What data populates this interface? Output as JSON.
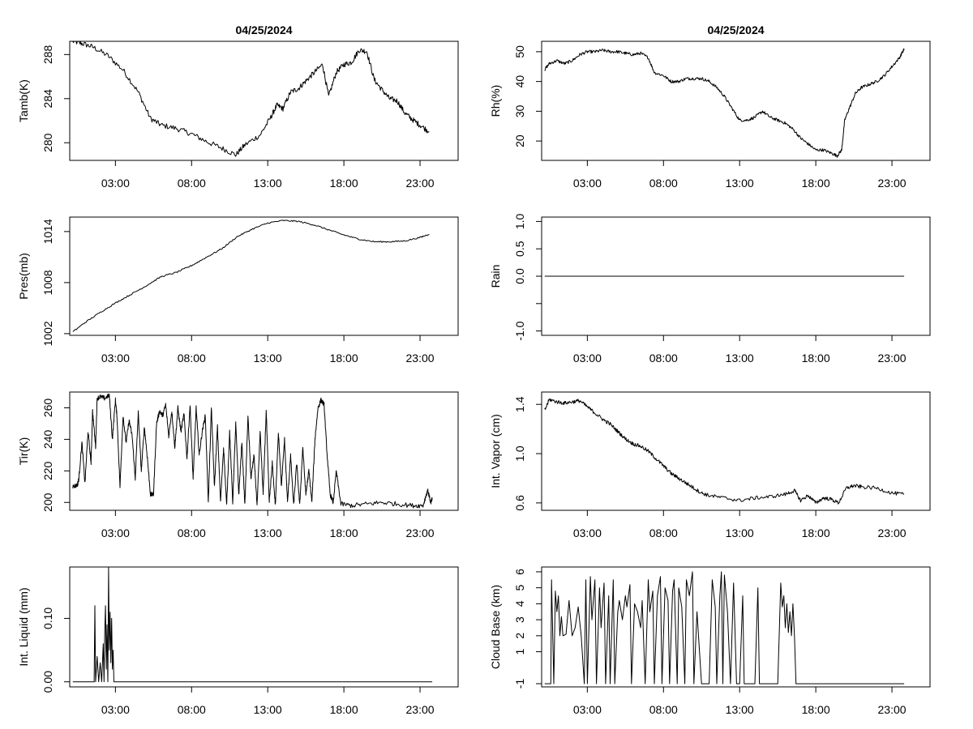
{
  "date_titles": [
    "04/25/2024",
    "04/25/2024"
  ],
  "x_tick_labels": [
    "03:00",
    "08:00",
    "13:00",
    "18:00",
    "23:00"
  ],
  "chart_data": [
    {
      "type": "line",
      "panel": "tamb",
      "title": "04/25/2024",
      "xlabel": "",
      "ylabel": "Tamb(K)",
      "xlim": [
        0,
        25.5
      ],
      "ylim": [
        278.4,
        289.2
      ],
      "xticks": [
        3,
        8,
        13,
        18,
        23
      ],
      "yticks": [
        280,
        284,
        288
      ],
      "yticklabels": [
        "280",
        "284",
        "288"
      ],
      "x": [
        0.2,
        0.8,
        1.5,
        2.5,
        3.5,
        4.5,
        5.3,
        6.0,
        7.0,
        8.0,
        9.0,
        10.0,
        10.9,
        11.5,
        12.5,
        13.2,
        13.6,
        14.0,
        14.5,
        15.0,
        15.5,
        16.0,
        16.6,
        17.0,
        17.5,
        18.0,
        18.5,
        19.0,
        19.5,
        20.0,
        20.5,
        21.0,
        21.5,
        22.0,
        22.5,
        23.0,
        23.6
      ],
      "y": [
        289.2,
        289.0,
        288.7,
        287.9,
        286.6,
        284.6,
        282.2,
        281.6,
        281.3,
        280.8,
        280.1,
        279.5,
        278.9,
        279.8,
        280.7,
        282.3,
        283.4,
        283.1,
        284.6,
        284.9,
        285.6,
        286.3,
        287.1,
        284.2,
        286.4,
        287.1,
        287.3,
        288.4,
        288.3,
        285.7,
        284.8,
        284.0,
        283.8,
        282.7,
        282.1,
        281.6,
        281.0
      ],
      "noise": 0.25
    },
    {
      "type": "line",
      "panel": "rh",
      "title": "04/25/2024",
      "xlabel": "",
      "ylabel": "Rh(%)",
      "xlim": [
        0,
        25.5
      ],
      "ylim": [
        13.5,
        53.5
      ],
      "xticks": [
        3,
        8,
        13,
        18,
        23
      ],
      "yticks": [
        20,
        30,
        40,
        50
      ],
      "yticklabels": [
        "20",
        "30",
        "40",
        "50"
      ],
      "x": [
        0.2,
        0.5,
        1.0,
        1.5,
        2.0,
        2.5,
        3.0,
        3.5,
        4.0,
        4.5,
        5.0,
        5.5,
        6.0,
        6.5,
        7.0,
        7.4,
        8.0,
        8.5,
        9.0,
        9.5,
        10.0,
        10.5,
        11.0,
        11.5,
        12.0,
        12.5,
        13.0,
        13.5,
        14.0,
        14.5,
        15.0,
        15.5,
        16.0,
        16.5,
        17.0,
        17.5,
        18.0,
        18.5,
        19.0,
        19.4,
        19.7,
        19.9,
        20.2,
        20.6,
        21.0,
        21.5,
        22.0,
        22.5,
        23.0,
        23.5,
        23.8
      ],
      "y": [
        44,
        46,
        47,
        46,
        47,
        49,
        50,
        50,
        50.5,
        50,
        50,
        49.5,
        49,
        49.5,
        48,
        43,
        42,
        40,
        40,
        41,
        41,
        41,
        40,
        38,
        35,
        31,
        27,
        27,
        28,
        30,
        28,
        27,
        26,
        24,
        21,
        19,
        17,
        17,
        16,
        15,
        17,
        27,
        31,
        36,
        38,
        39,
        40,
        42,
        45,
        48,
        51
      ],
      "noise": 0.5
    },
    {
      "type": "line",
      "panel": "pres",
      "xlabel": "",
      "ylabel": "Pres(mb)",
      "xlim": [
        0,
        25.5
      ],
      "ylim": [
        1001.8,
        1015.7
      ],
      "xticks": [
        3,
        8,
        13,
        18,
        23
      ],
      "yticks": [
        1002,
        1008,
        1014
      ],
      "yticklabels": [
        "1002",
        "1008",
        "1014"
      ],
      "x": [
        0.2,
        1.0,
        2.0,
        3.0,
        4.0,
        5.0,
        6.0,
        7.0,
        8.0,
        9.0,
        10.0,
        11.0,
        12.0,
        13.0,
        14.0,
        15.0,
        16.0,
        17.0,
        18.0,
        19.0,
        20.0,
        21.0,
        22.0,
        23.0,
        23.6
      ],
      "y": [
        1002.2,
        1003.3,
        1004.5,
        1005.6,
        1006.6,
        1007.6,
        1008.7,
        1009.2,
        1010.0,
        1011.0,
        1012.0,
        1013.4,
        1014.3,
        1015.0,
        1015.3,
        1015.2,
        1014.8,
        1014.2,
        1013.6,
        1013.1,
        1012.8,
        1012.8,
        1012.9,
        1013.3,
        1013.7
      ],
      "noise": 0.08
    },
    {
      "type": "line",
      "panel": "rain",
      "xlabel": "",
      "ylabel": "Rain",
      "xlim": [
        0,
        25.5
      ],
      "ylim": [
        -1.08,
        1.08
      ],
      "xticks": [
        3,
        8,
        13,
        18,
        23
      ],
      "yticks": [
        -1.0,
        -0.5,
        0.0,
        0.5,
        1.0
      ],
      "yticklabels": [
        "-1.0",
        "",
        "0.0",
        "0.5",
        "1.0"
      ],
      "x": [
        0.2,
        23.8
      ],
      "y": [
        0.0,
        0.0
      ],
      "noise": 0
    },
    {
      "type": "line",
      "panel": "tir",
      "xlabel": "",
      "ylabel": "Tir(K)",
      "xlim": [
        0,
        25.5
      ],
      "ylim": [
        195,
        270
      ],
      "xticks": [
        3,
        8,
        13,
        18,
        23
      ],
      "yticks": [
        200,
        220,
        240,
        260
      ],
      "yticklabels": [
        "200",
        "220",
        "240",
        "260"
      ],
      "x": [
        0.2,
        0.5,
        0.6,
        0.8,
        1.0,
        1.2,
        1.4,
        1.5,
        1.7,
        1.8,
        2.0,
        2.3,
        2.6,
        2.8,
        3.0,
        3.1,
        3.3,
        3.5,
        3.7,
        3.9,
        4.1,
        4.3,
        4.5,
        4.7,
        4.9,
        5.1,
        5.3,
        5.5,
        5.7,
        5.9,
        6.1,
        6.3,
        6.5,
        6.7,
        6.9,
        7.1,
        7.3,
        7.5,
        7.7,
        7.9,
        8.1,
        8.3,
        8.5,
        8.7,
        8.9,
        9.1,
        9.3,
        9.5,
        9.7,
        9.9,
        10.1,
        10.3,
        10.5,
        10.7,
        10.9,
        11.1,
        11.3,
        11.5,
        11.7,
        11.9,
        12.1,
        12.3,
        12.5,
        12.7,
        12.9,
        13.1,
        13.3,
        13.5,
        13.7,
        13.9,
        14.1,
        14.3,
        14.5,
        14.7,
        14.9,
        15.1,
        15.3,
        15.5,
        15.7,
        15.9,
        16.1,
        16.3,
        16.5,
        16.7,
        16.9,
        17.1,
        17.3,
        17.5,
        17.8,
        18.5,
        19.5,
        20.5,
        21.5,
        22.5,
        23.2,
        23.5,
        23.7,
        23.8
      ],
      "y": [
        210,
        211,
        215,
        238,
        212,
        245,
        225,
        258,
        235,
        266,
        267,
        266,
        268,
        240,
        265,
        255,
        210,
        255,
        238,
        252,
        242,
        215,
        257,
        220,
        248,
        228,
        205,
        205,
        250,
        258,
        255,
        262,
        242,
        258,
        235,
        260,
        245,
        256,
        228,
        262,
        215,
        260,
        230,
        245,
        255,
        200,
        260,
        210,
        248,
        200,
        235,
        198,
        245,
        200,
        250,
        205,
        238,
        198,
        255,
        215,
        230,
        198,
        245,
        205,
        258,
        200,
        225,
        198,
        245,
        210,
        240,
        200,
        230,
        198,
        225,
        198,
        235,
        205,
        220,
        200,
        240,
        260,
        265,
        262,
        230,
        205,
        200,
        220,
        199,
        198,
        199,
        200,
        199,
        198,
        198,
        208,
        200,
        202
      ],
      "noise": 1.5
    },
    {
      "type": "line",
      "panel": "vapor",
      "xlabel": "",
      "ylabel": "Int. Vapor (cm)",
      "xlim": [
        0,
        25.5
      ],
      "ylim": [
        0.54,
        1.5
      ],
      "xticks": [
        3,
        8,
        13,
        18,
        23
      ],
      "yticks": [
        0.6,
        1.0,
        1.4
      ],
      "yticklabels": [
        "0.6",
        "1.0",
        "1.4"
      ],
      "x": [
        0.2,
        0.5,
        1.0,
        1.5,
        2.0,
        2.5,
        3.0,
        3.5,
        4.0,
        4.5,
        5.0,
        5.5,
        6.0,
        6.5,
        7.0,
        7.5,
        8.0,
        8.5,
        9.0,
        9.5,
        10.0,
        10.5,
        11.0,
        12.0,
        13.0,
        14.0,
        15.0,
        16.0,
        16.6,
        17.0,
        17.5,
        18.0,
        18.5,
        19.0,
        19.5,
        20.0,
        20.5,
        21.0,
        22.0,
        23.0,
        23.8
      ],
      "y": [
        1.35,
        1.44,
        1.42,
        1.41,
        1.42,
        1.43,
        1.38,
        1.33,
        1.28,
        1.24,
        1.18,
        1.12,
        1.08,
        1.06,
        1.02,
        0.96,
        0.9,
        0.84,
        0.8,
        0.76,
        0.72,
        0.68,
        0.66,
        0.64,
        0.62,
        0.64,
        0.65,
        0.67,
        0.7,
        0.62,
        0.66,
        0.6,
        0.64,
        0.63,
        0.6,
        0.72,
        0.74,
        0.73,
        0.72,
        0.68,
        0.67
      ],
      "noise": 0.015
    },
    {
      "type": "line",
      "panel": "liquid",
      "xlabel": "",
      "ylabel": "Int. Liquid (mm)",
      "xlim": [
        0,
        25.5
      ],
      "ylim": [
        -0.008,
        0.181
      ],
      "xticks": [
        3,
        8,
        13,
        18,
        23
      ],
      "yticks": [
        0.0,
        0.1
      ],
      "yticklabels": [
        "0.00",
        "0.10"
      ],
      "x": [
        0.2,
        1.5,
        1.6,
        1.65,
        1.7,
        1.8,
        1.9,
        2.0,
        2.1,
        2.2,
        2.25,
        2.3,
        2.35,
        2.4,
        2.45,
        2.5,
        2.55,
        2.6,
        2.65,
        2.7,
        2.75,
        2.8,
        2.85,
        2.9,
        3.0,
        23.8
      ],
      "y": [
        0.0,
        0.0,
        0.0,
        0.12,
        0.0,
        0.04,
        0.0,
        0.03,
        0.0,
        0.06,
        0.0,
        0.08,
        0.12,
        0.02,
        0.09,
        0.0,
        0.18,
        0.05,
        0.11,
        0.03,
        0.1,
        0.02,
        0.05,
        0.0,
        0.0,
        0.0
      ],
      "noise": 0
    },
    {
      "type": "line",
      "panel": "cloud",
      "xlabel": "",
      "ylabel": "Cloud Base (km)",
      "xlim": [
        0,
        25.5
      ],
      "ylim": [
        -1.2,
        6.3
      ],
      "xticks": [
        3,
        8,
        13,
        18,
        23
      ],
      "yticks": [
        -1,
        1,
        2,
        3,
        4,
        5,
        6
      ],
      "yticklabels": [
        "-1",
        "1",
        "2",
        "3",
        "4",
        "5",
        "6"
      ],
      "x": [
        0.2,
        0.6,
        0.65,
        0.8,
        0.9,
        1.0,
        1.1,
        1.2,
        1.3,
        1.4,
        1.6,
        1.8,
        2.0,
        2.2,
        2.4,
        2.6,
        2.8,
        2.9,
        3.0,
        3.2,
        3.3,
        3.5,
        3.6,
        3.8,
        3.9,
        4.1,
        4.2,
        4.4,
        4.5,
        4.7,
        4.8,
        5.0,
        5.1,
        5.3,
        5.5,
        5.6,
        5.8,
        5.9,
        6.1,
        6.3,
        6.5,
        6.6,
        6.8,
        7.0,
        7.1,
        7.3,
        7.4,
        7.6,
        7.8,
        7.9,
        8.1,
        8.3,
        8.4,
        8.6,
        8.7,
        8.9,
        9.0,
        9.2,
        9.4,
        9.5,
        9.7,
        9.9,
        10.0,
        10.2,
        10.5,
        11.0,
        11.2,
        11.4,
        11.5,
        11.7,
        11.8,
        11.9,
        12.0,
        12.2,
        12.4,
        12.6,
        12.8,
        13.0,
        13.2,
        13.3,
        14.0,
        14.2,
        14.3,
        15.5,
        15.7,
        15.8,
        15.9,
        16.0,
        16.1,
        16.2,
        16.3,
        16.4,
        16.5,
        16.6,
        16.7,
        17.0,
        23.8
      ],
      "y": [
        -1,
        -1,
        5.5,
        -1,
        4.8,
        3.5,
        4.5,
        2.0,
        3.2,
        2.0,
        2.1,
        4.2,
        2.0,
        2.5,
        3.8,
        2.0,
        -1,
        5.5,
        -1,
        5.7,
        3.0,
        5.5,
        -1,
        5.0,
        2.5,
        5.3,
        -1,
        4.5,
        -1,
        5.5,
        -1,
        3.5,
        4.2,
        3.0,
        4.5,
        3.8,
        5.2,
        -1,
        4.0,
        3.5,
        2.5,
        4.2,
        -1,
        5.5,
        3.5,
        4.8,
        -1,
        4.5,
        5.7,
        -1,
        5.0,
        4.2,
        -1,
        4.8,
        5.5,
        -1,
        5.0,
        3.8,
        -1,
        5.5,
        4.5,
        6.0,
        -1,
        3.5,
        -1,
        -1,
        5.5,
        3.8,
        -1,
        4.5,
        6.0,
        -1,
        5.8,
        3.5,
        -1,
        5.3,
        -1,
        -1,
        4.5,
        -1,
        -1,
        5.0,
        -1,
        -1,
        5.3,
        3.8,
        4.5,
        2.5,
        4.0,
        2.2,
        3.5,
        2.0,
        4.0,
        2.0,
        -1,
        -1,
        -1
      ],
      "noise": 0
    }
  ]
}
